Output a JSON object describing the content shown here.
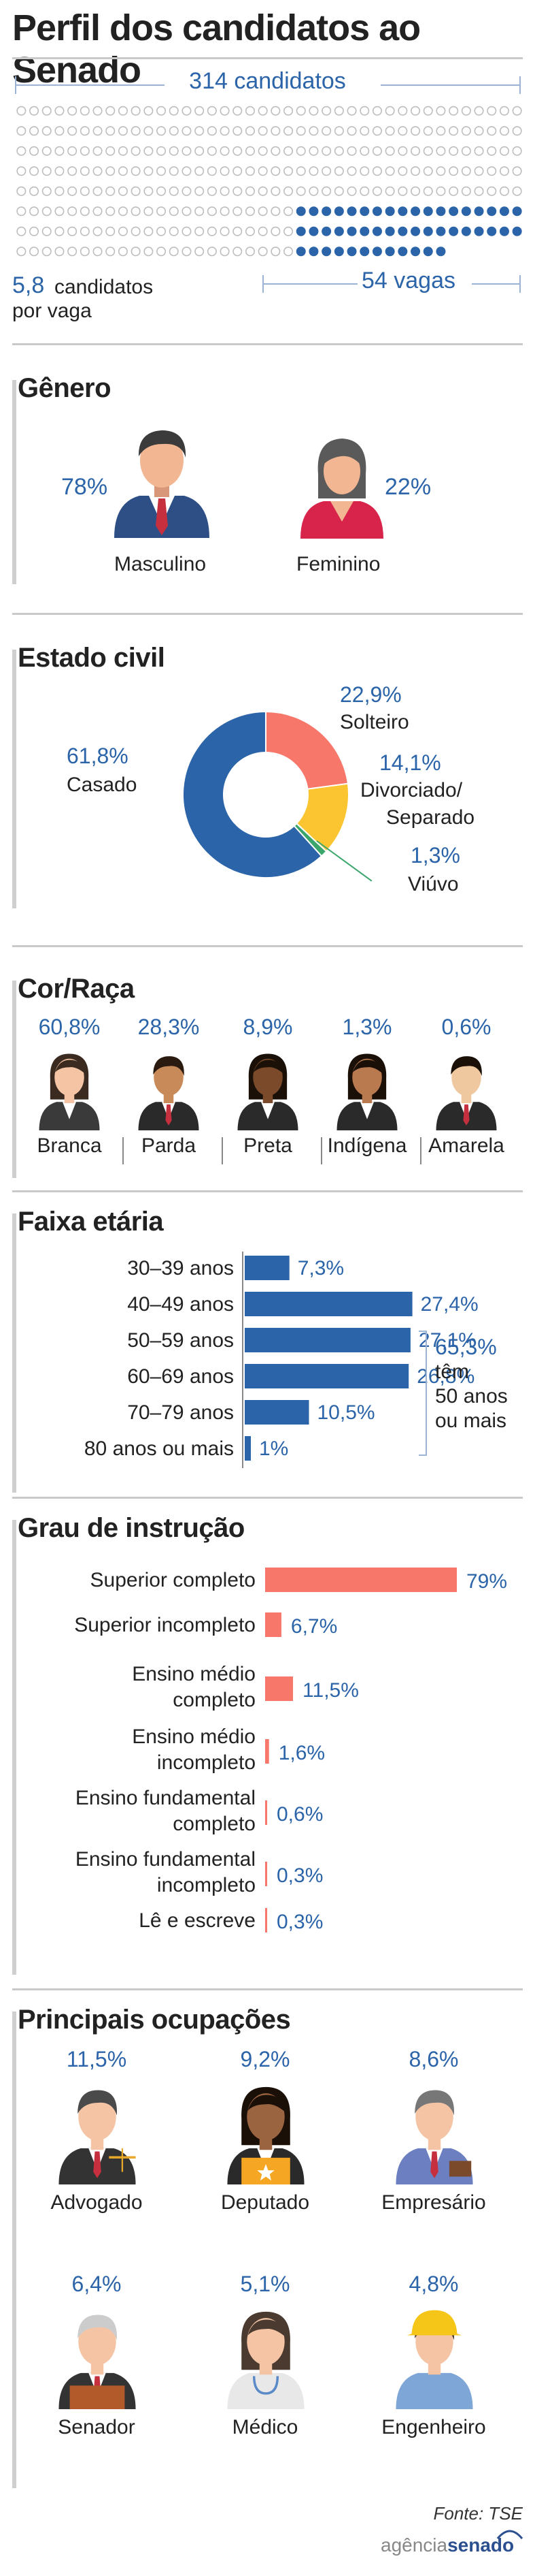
{
  "title": "Perfil dos candidatos ao Senado",
  "overview": {
    "total_label": "314 candidatos",
    "vagas_label": "54 vagas",
    "ratio_value": "5,8",
    "ratio_text1": "candidatos",
    "ratio_text2": "por vaga",
    "total": 314,
    "vagas": 54
  },
  "genero": {
    "heading": "Gênero",
    "items": [
      {
        "label": "Masculino",
        "pct": "78%"
      },
      {
        "label": "Feminino",
        "pct": "22%"
      }
    ]
  },
  "estado_civil": {
    "heading": "Estado civil",
    "casado_pct": "61,8%",
    "casado_label": "Casado",
    "solteiro_pct": "22,9%",
    "solteiro_label": "Solteiro",
    "div_pct": "14,1%",
    "div_label1": "Divorciado/",
    "div_label2": "Separado",
    "viuvo_pct": "1,3%",
    "viuvo_label": "Viúvo"
  },
  "cor_raca": {
    "heading": "Cor/Raça",
    "items": [
      {
        "label": "Branca",
        "pct": "60,8%"
      },
      {
        "label": "Parda",
        "pct": "28,3%"
      },
      {
        "label": "Preta",
        "pct": "8,9%"
      },
      {
        "label": "Indígena",
        "pct": "1,3%"
      },
      {
        "label": "Amarela",
        "pct": "0,6%"
      }
    ]
  },
  "faixa": {
    "heading": "Faixa etária",
    "note_pct": "65,3%",
    "note_1": "têm",
    "note_2": "50 anos",
    "note_3": "ou mais"
  },
  "grau": {
    "heading": "Grau de instrução",
    "labels": [
      [
        "Superior completo"
      ],
      [
        "Superior incompleto"
      ],
      [
        "Ensino médio",
        "completo"
      ],
      [
        "Ensino médio",
        "incompleto"
      ],
      [
        "Ensino fundamental",
        "completo"
      ],
      [
        "Ensino fundamental",
        "incompleto"
      ],
      [
        "Lê e escreve"
      ]
    ]
  },
  "ocupacoes": {
    "heading": "Principais ocupações",
    "items": [
      {
        "label": "Advogado",
        "pct": "11,5%"
      },
      {
        "label": "Deputado",
        "pct": "9,2%"
      },
      {
        "label": "Empresário",
        "pct": "8,6%"
      },
      {
        "label": "Senador",
        "pct": "6,4%"
      },
      {
        "label": "Médico",
        "pct": "5,1%"
      },
      {
        "label": "Engenheiro",
        "pct": "4,8%"
      }
    ]
  },
  "footer": {
    "fonte": "Fonte: TSE",
    "logo_a": "agência",
    "logo_b": "senado"
  },
  "colors": {
    "blue": "#2b64a8",
    "salmon": "#f7776a",
    "yellow": "#fbc531",
    "green": "#3aa66c",
    "gray_dot": "#bdbdbd"
  },
  "chart_data": [
    {
      "type": "pie",
      "title": "Estado civil",
      "labels": [
        "Casado",
        "Solteiro",
        "Divorciado/Separado",
        "Viúvo"
      ],
      "values": [
        61.8,
        22.9,
        14.1,
        1.3
      ],
      "colors": [
        "#2b64a8",
        "#f7776a",
        "#fbc531",
        "#3aa66c"
      ]
    },
    {
      "type": "bar",
      "title": "Faixa etária",
      "categories": [
        "30–39 anos",
        "40–49 anos",
        "50–59 anos",
        "60–69 anos",
        "70–79 anos",
        "80 anos ou mais"
      ],
      "values": [
        7.3,
        27.4,
        27.1,
        26.8,
        10.5,
        1
      ],
      "value_labels": [
        "7,3%",
        "27,4%",
        "27,1%",
        "26,8%",
        "10,5%",
        "1%"
      ],
      "color": "#2b64a8"
    },
    {
      "type": "bar",
      "title": "Grau de instrução",
      "categories": [
        "Superior completo",
        "Superior incompleto",
        "Ensino médio completo",
        "Ensino médio incompleto",
        "Ensino fundamental completo",
        "Ensino fundamental incompleto",
        "Lê e escreve"
      ],
      "values": [
        79,
        6.7,
        11.5,
        1.6,
        0.6,
        0.3,
        0.3
      ],
      "value_labels": [
        "79%",
        "6,7%",
        "11,5%",
        "1,6%",
        "0,6%",
        "0,3%",
        "0,3%"
      ],
      "color": "#f7776a"
    }
  ]
}
